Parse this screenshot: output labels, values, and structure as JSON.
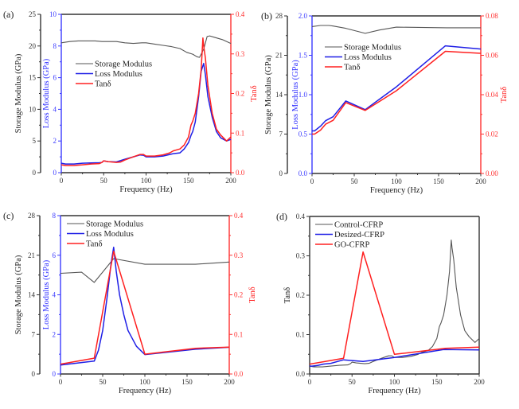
{
  "chart_data": [
    {
      "panel": "(a)",
      "type": "line",
      "xlabel": "Frequency (Hz)",
      "xlim": [
        0,
        200
      ],
      "xticks": [
        0,
        50,
        100,
        150,
        200
      ],
      "axes": {
        "storage": {
          "label": "Storage Modulus (GPa)",
          "lim": [
            0,
            25
          ],
          "ticks": [
            0,
            5,
            10,
            15,
            20,
            25
          ],
          "color": "#222222"
        },
        "loss": {
          "label": "Loss Modulus (GPa)",
          "lim": [
            0,
            10
          ],
          "ticks": [
            0,
            2,
            4,
            6,
            8,
            10
          ],
          "color": "#3333ff"
        },
        "tan": {
          "label": "Tanδ",
          "lim": [
            0,
            0.4
          ],
          "ticks": [
            "0.0",
            "0.1",
            "0.2",
            "0.3",
            "0.4"
          ],
          "color": "#ff2222"
        }
      },
      "legend": [
        "Storage Modulus",
        "Loss Modulus",
        "Tanδ"
      ],
      "series": [
        {
          "name": "Storage Modulus",
          "axis": "storage",
          "color": "#555555",
          "x": [
            0,
            10,
            20,
            30,
            40,
            48,
            55,
            65,
            75,
            85,
            95,
            100,
            110,
            120,
            130,
            140,
            148,
            155,
            160,
            163,
            168,
            172,
            175,
            180,
            190,
            200
          ],
          "y": [
            20.5,
            20.7,
            20.8,
            20.8,
            20.8,
            20.7,
            20.7,
            20.7,
            20.5,
            20.4,
            20.5,
            20.5,
            20.3,
            20.1,
            19.9,
            19.6,
            19.0,
            18.7,
            18.3,
            18.2,
            19.5,
            21.5,
            21.6,
            21.4,
            21.0,
            20.4
          ]
        },
        {
          "name": "Loss Modulus",
          "axis": "loss",
          "color": "#1f1fe6",
          "x": [
            0,
            5,
            15,
            25,
            35,
            45,
            48,
            50,
            55,
            65,
            75,
            85,
            93,
            97,
            100,
            110,
            120,
            128,
            132,
            140,
            145,
            150,
            153,
            155,
            158,
            162,
            165,
            168,
            170,
            173,
            178,
            183,
            188,
            195,
            200
          ],
          "y": [
            0.6,
            0.55,
            0.55,
            0.6,
            0.62,
            0.63,
            0.65,
            0.75,
            0.7,
            0.68,
            0.85,
            1.0,
            1.12,
            1.1,
            1.0,
            1.0,
            1.05,
            1.15,
            1.2,
            1.25,
            1.5,
            1.9,
            2.35,
            2.6,
            3.2,
            4.8,
            6.4,
            6.9,
            6.2,
            4.8,
            3.5,
            2.6,
            2.2,
            2.0,
            2.1
          ]
        },
        {
          "name": "Tanδ",
          "axis": "tan",
          "color": "#ff2020",
          "x": [
            0,
            5,
            15,
            25,
            35,
            45,
            48,
            50,
            55,
            65,
            70,
            75,
            85,
            93,
            97,
            100,
            110,
            120,
            128,
            132,
            140,
            145,
            150,
            153,
            155,
            158,
            162,
            165,
            167,
            168,
            170,
            173,
            178,
            183,
            188,
            195,
            200
          ],
          "y": [
            0.02,
            0.018,
            0.018,
            0.02,
            0.022,
            0.023,
            0.026,
            0.03,
            0.028,
            0.026,
            0.027,
            0.032,
            0.04,
            0.046,
            0.046,
            0.042,
            0.042,
            0.045,
            0.05,
            0.055,
            0.06,
            0.07,
            0.09,
            0.12,
            0.13,
            0.15,
            0.2,
            0.26,
            0.34,
            0.32,
            0.29,
            0.22,
            0.15,
            0.11,
            0.095,
            0.08,
            0.09
          ]
        }
      ]
    },
    {
      "panel": "(b)",
      "type": "line",
      "xlabel": "Frequency (Hz)",
      "xlim": [
        0,
        200
      ],
      "xticks": [
        0,
        50,
        100,
        150,
        200
      ],
      "axes": {
        "storage": {
          "label": "Storage Modulus (GPa)",
          "lim": [
            0,
            28
          ],
          "ticks": [
            0,
            7,
            14,
            21,
            28
          ],
          "color": "#222222"
        },
        "loss": {
          "label": "Loss Modulus (GPa)",
          "lim": [
            0,
            2.0
          ],
          "ticks": [
            "0.0",
            "0.5",
            "1.0",
            "1.5",
            "2.0"
          ],
          "color": "#3333ff"
        },
        "tan": {
          "label": "Tanδ",
          "lim": [
            0,
            0.08
          ],
          "ticks": [
            "0.00",
            "0.02",
            "0.04",
            "0.06",
            "0.08"
          ],
          "color": "#ff2222"
        }
      },
      "legend": [
        "Storage Modulus",
        "Loss Modulus",
        "Tanδ"
      ],
      "series": [
        {
          "name": "Storage Modulus",
          "axis": "storage",
          "color": "#555555",
          "x": [
            0,
            10,
            20,
            25,
            40,
            63,
            80,
            100,
            160,
            200
          ],
          "y": [
            26.1,
            26.3,
            26.3,
            26.2,
            25.8,
            24.9,
            25.5,
            26.0,
            25.9,
            25.9
          ]
        },
        {
          "name": "Loss Modulus",
          "axis": "loss",
          "color": "#1f1fe6",
          "x": [
            0,
            3,
            10,
            16,
            25,
            40,
            63,
            100,
            158,
            200
          ],
          "y": [
            0.54,
            0.54,
            0.6,
            0.67,
            0.72,
            0.92,
            0.81,
            1.1,
            1.62,
            1.58
          ]
        },
        {
          "name": "Tanδ",
          "axis": "tan",
          "color": "#ff2020",
          "x": [
            0,
            3,
            10,
            16,
            25,
            40,
            63,
            100,
            158,
            200
          ],
          "y": [
            0.02,
            0.02,
            0.022,
            0.025,
            0.027,
            0.036,
            0.032,
            0.042,
            0.062,
            0.061
          ]
        }
      ]
    },
    {
      "panel": "(c)",
      "type": "line",
      "xlabel": "Frequency (Hz)",
      "xlim": [
        0,
        200
      ],
      "xticks": [
        0,
        50,
        100,
        150,
        200
      ],
      "axes": {
        "storage": {
          "label": "Storage Modulus (GPa)",
          "lim": [
            0,
            28
          ],
          "ticks": [
            0,
            7,
            14,
            21,
            28
          ],
          "color": "#222222"
        },
        "loss": {
          "label": "Loss Modulus (GPa)",
          "lim": [
            0,
            8
          ],
          "ticks": [
            0,
            2,
            4,
            6,
            8
          ],
          "color": "#3333ff"
        },
        "tan": {
          "label": "Tanδ",
          "lim": [
            0,
            0.4
          ],
          "ticks": [
            "0.0",
            "0.1",
            "0.2",
            "0.3",
            "0.4"
          ],
          "color": "#ff2222"
        }
      },
      "legend": [
        "Storage Modulus",
        "Loss Modulus",
        "Tanδ"
      ],
      "series": [
        {
          "name": "Storage Modulus",
          "axis": "storage",
          "color": "#555555",
          "x": [
            0,
            25,
            40,
            63,
            100,
            160,
            200
          ],
          "y": [
            17.8,
            18.0,
            16.2,
            20.4,
            19.4,
            19.4,
            19.8
          ]
        },
        {
          "name": "Loss Modulus",
          "axis": "loss",
          "color": "#1f1fe6",
          "x": [
            0,
            40,
            45,
            50,
            55,
            60,
            63,
            66,
            70,
            75,
            80,
            90,
            100,
            160,
            200
          ],
          "y": [
            0.45,
            0.65,
            1.2,
            2.2,
            3.8,
            5.6,
            6.4,
            5.2,
            4.0,
            3.0,
            2.2,
            1.4,
            0.98,
            1.25,
            1.35
          ]
        },
        {
          "name": "Tanδ",
          "axis": "tan",
          "color": "#ff2020",
          "x": [
            0,
            40,
            63,
            100,
            160,
            200
          ],
          "y": [
            0.025,
            0.04,
            0.31,
            0.05,
            0.065,
            0.068
          ]
        }
      ]
    },
    {
      "panel": "(d)",
      "type": "line",
      "xlabel": "Frequency (Hz)",
      "ylabel": "Tanδ",
      "xlim": [
        0,
        200
      ],
      "ylim": [
        0,
        0.4
      ],
      "xticks": [
        0,
        50,
        100,
        150,
        200
      ],
      "yticks": [
        "0.0",
        "0.1",
        "0.2",
        "0.3",
        "0.4"
      ],
      "legend": [
        "Control-CFRP",
        "Desized-CFRP",
        "GO-CFRP"
      ],
      "series": [
        {
          "name": "Control-CFRP",
          "color": "#555555",
          "x": [
            0,
            5,
            15,
            25,
            35,
            45,
            48,
            50,
            55,
            65,
            70,
            75,
            85,
            93,
            97,
            100,
            110,
            120,
            128,
            132,
            140,
            145,
            150,
            153,
            155,
            158,
            162,
            165,
            167,
            168,
            170,
            173,
            178,
            183,
            188,
            195,
            200
          ],
          "y": [
            0.02,
            0.018,
            0.018,
            0.02,
            0.022,
            0.023,
            0.026,
            0.03,
            0.028,
            0.026,
            0.027,
            0.032,
            0.04,
            0.046,
            0.046,
            0.042,
            0.042,
            0.045,
            0.05,
            0.055,
            0.06,
            0.07,
            0.09,
            0.12,
            0.13,
            0.15,
            0.2,
            0.26,
            0.34,
            0.32,
            0.29,
            0.22,
            0.15,
            0.11,
            0.095,
            0.08,
            0.09
          ]
        },
        {
          "name": "Desized-CFRP",
          "color": "#1f1fe6",
          "x": [
            0,
            3,
            10,
            16,
            25,
            40,
            63,
            100,
            158,
            200
          ],
          "y": [
            0.02,
            0.02,
            0.022,
            0.025,
            0.027,
            0.036,
            0.032,
            0.042,
            0.062,
            0.061
          ]
        },
        {
          "name": "GO-CFRP",
          "color": "#ff2020",
          "x": [
            0,
            40,
            63,
            100,
            160,
            200
          ],
          "y": [
            0.025,
            0.04,
            0.31,
            0.05,
            0.065,
            0.068
          ]
        }
      ]
    }
  ]
}
